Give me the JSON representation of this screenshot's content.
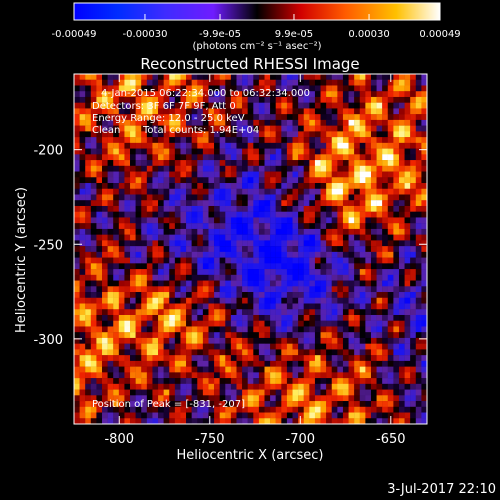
{
  "chart_data": {
    "type": "heatmap",
    "title": "Reconstructed RHESSI Image",
    "xlabel": "Heliocentric X (arcsec)",
    "ylabel": "Heliocentric Y (arcsec)",
    "xlim": [
      -825,
      -630
    ],
    "ylim": [
      -345,
      -160
    ],
    "x_ticks": [
      -800,
      -750,
      -700,
      -650
    ],
    "y_ticks": [
      -200,
      -250,
      -300
    ],
    "x_tick_labels": [
      "-800",
      "-750",
      "-700",
      "-650"
    ],
    "y_tick_labels": [
      "-200",
      "-250",
      "-300"
    ],
    "colorbar": {
      "range": [
        -0.00049,
        0.00049
      ],
      "units": "(photons cm⁻² s⁻¹ asec⁻²)",
      "tick_values": [
        -0.00049,
        -0.0003,
        -9.9e-05,
        9.9e-05,
        0.0003,
        0.00049
      ],
      "tick_labels": [
        "-0.00049",
        "-0.00030",
        "-9.9e-05",
        "9.9e-05",
        "0.00030",
        "0.00049"
      ]
    },
    "annotations": [
      "4-Jan-2015 06:22:34.000 to 06:32:34.000",
      "Detectors: 3F 6F 7F 9F, Att 0",
      "Energy Range: 12.0 - 25.0 keV",
      "Clean",
      "Total counts: 1.94E+04"
    ],
    "peak": {
      "label": "Position of Peak = [-831, -207]",
      "x": -831,
      "y": -207
    },
    "timestamp": "3-Jul-2017 22:10"
  }
}
